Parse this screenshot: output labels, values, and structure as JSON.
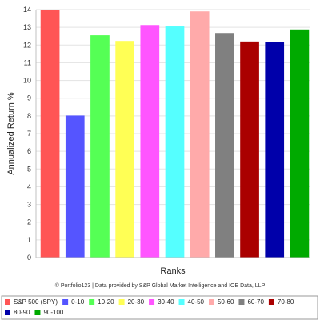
{
  "chart_data": {
    "type": "bar",
    "ylabel": "Annualized Return %",
    "xlabel": "Ranks",
    "ylim": [
      0,
      14
    ],
    "yticks": [
      0,
      1,
      2,
      3,
      4,
      5,
      6,
      7,
      8,
      9,
      10,
      11,
      12,
      13,
      14
    ],
    "grid": true,
    "legend_placement": "bottom",
    "credit": "© Portfolio123 | Data provided by S&P Global Market Intelligence and IOE Data, LLP",
    "categories": [
      "S&P 500 (SPY)",
      "0-10",
      "10-20",
      "20-30",
      "30-40",
      "40-50",
      "50-60",
      "60-70",
      "70-80",
      "80-90",
      "90-100"
    ],
    "values": [
      13.97,
      8.02,
      12.55,
      12.23,
      13.13,
      13.05,
      13.9,
      12.68,
      12.2,
      12.15,
      12.88
    ],
    "colors": [
      "#ff5555",
      "#5555ff",
      "#55ff55",
      "#ffff55",
      "#ff55ff",
      "#55ffff",
      "#ffaaaa",
      "#808080",
      "#aa0000",
      "#0000aa",
      "#00aa00"
    ]
  }
}
